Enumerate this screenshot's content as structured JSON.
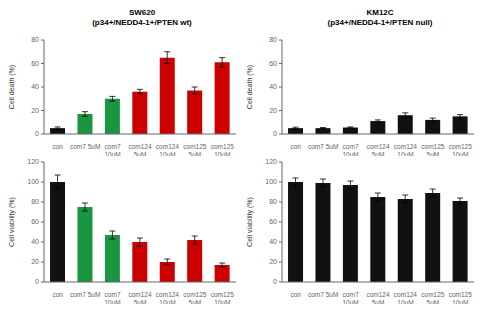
{
  "chart_data": [
    {
      "type": "bar",
      "title": "SW620\n(p34+/NEDD4-1+/PTEN wt)",
      "categories": [
        "con",
        "com7 5uM",
        "com7\n10uM",
        "com124\n5uM",
        "com124\n10uM",
        "com125\n5uM",
        "com125\n10uM"
      ],
      "values": [
        5,
        17,
        30,
        36,
        65,
        37,
        61
      ],
      "errors": [
        1,
        2,
        2,
        2,
        5,
        3,
        4
      ],
      "colors": [
        "#111111",
        "#1a9641",
        "#1a9641",
        "#cc0000",
        "#cc0000",
        "#cc0000",
        "#cc0000"
      ],
      "ylabel": "Cell death (%)",
      "ylim": [
        0,
        80
      ],
      "yticks": [
        0,
        20,
        40,
        60,
        80
      ],
      "grid": false
    },
    {
      "type": "bar",
      "title": "KM12C\n(p34+/NEDD4-1+/PTEN null)",
      "categories": [
        "con",
        "com7 5uM",
        "com7\n10uM",
        "com124\n5uM",
        "com124\n10uM",
        "com125\n5uM",
        "com125\n10uM"
      ],
      "values": [
        5,
        5,
        5.5,
        11,
        16,
        12,
        15
      ],
      "errors": [
        0.8,
        0.5,
        0.5,
        1,
        2,
        1.5,
        1.5
      ],
      "colors": [
        "#111111",
        "#111111",
        "#111111",
        "#111111",
        "#111111",
        "#111111",
        "#111111"
      ],
      "ylabel": "Cell death (%)",
      "ylim": [
        0,
        80
      ],
      "yticks": [
        0,
        20,
        40,
        60,
        80
      ],
      "grid": false
    },
    {
      "type": "bar",
      "categories": [
        "con",
        "com7 5uM",
        "com7\n10uM",
        "com124\n5uM",
        "com124\n10uM",
        "com125\n5uM",
        "com125\n10uM"
      ],
      "values": [
        100,
        75,
        47,
        40,
        20,
        42,
        17
      ],
      "errors": [
        7,
        4,
        4,
        4,
        3,
        4,
        2
      ],
      "colors": [
        "#111111",
        "#1a9641",
        "#1a9641",
        "#cc0000",
        "#cc0000",
        "#cc0000",
        "#cc0000"
      ],
      "ylabel": "Cell viability (%)",
      "ylim": [
        0,
        120
      ],
      "yticks": [
        0,
        20,
        40,
        60,
        80,
        100,
        120
      ],
      "grid": false
    },
    {
      "type": "bar",
      "categories": [
        "con",
        "com7 5uM",
        "com7\n10uM",
        "com124\n5uM",
        "com124\n10uM",
        "com125\n5uM",
        "com125\n10uM"
      ],
      "values": [
        100,
        99,
        97,
        85,
        83,
        89,
        81
      ],
      "errors": [
        4,
        4,
        4,
        4,
        4,
        4,
        3
      ],
      "colors": [
        "#111111",
        "#111111",
        "#111111",
        "#111111",
        "#111111",
        "#111111",
        "#111111"
      ],
      "ylabel": "Cell viability (%)",
      "ylim": [
        0,
        120
      ],
      "yticks": [
        0,
        20,
        40,
        60,
        80,
        100,
        120
      ],
      "grid": false
    }
  ]
}
